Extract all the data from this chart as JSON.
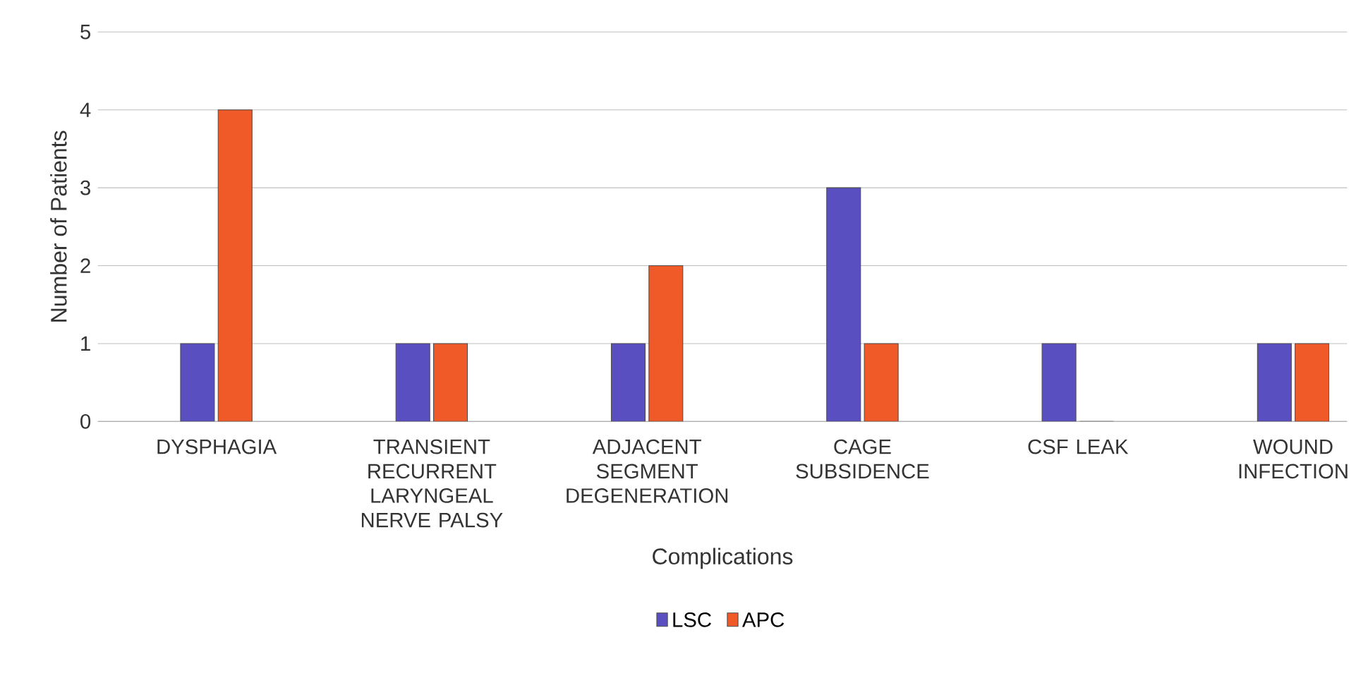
{
  "chart_data": {
    "type": "bar",
    "xlabel": "Complications",
    "ylabel": "Number of Patients",
    "categories": [
      "DYSPHAGIA",
      "TRANSIENT RECURRENT LARYNGEAL NERVE PALSY",
      "ADJACENT SEGMENT DEGENERATION",
      "CAGE SUBSIDENCE",
      "CSF LEAK",
      "WOUND INFECTION"
    ],
    "series": [
      {
        "name": "LSC",
        "color": "#5a4fc0",
        "values": [
          1,
          1,
          1,
          3,
          1,
          1
        ]
      },
      {
        "name": "APC",
        "color": "#f05a28",
        "values": [
          4,
          1,
          2,
          1,
          0,
          1
        ]
      }
    ],
    "ylim": [
      0,
      5
    ],
    "yticks": [
      0,
      1,
      2,
      3,
      4,
      5
    ],
    "grid": "y",
    "legend": "bottom"
  }
}
